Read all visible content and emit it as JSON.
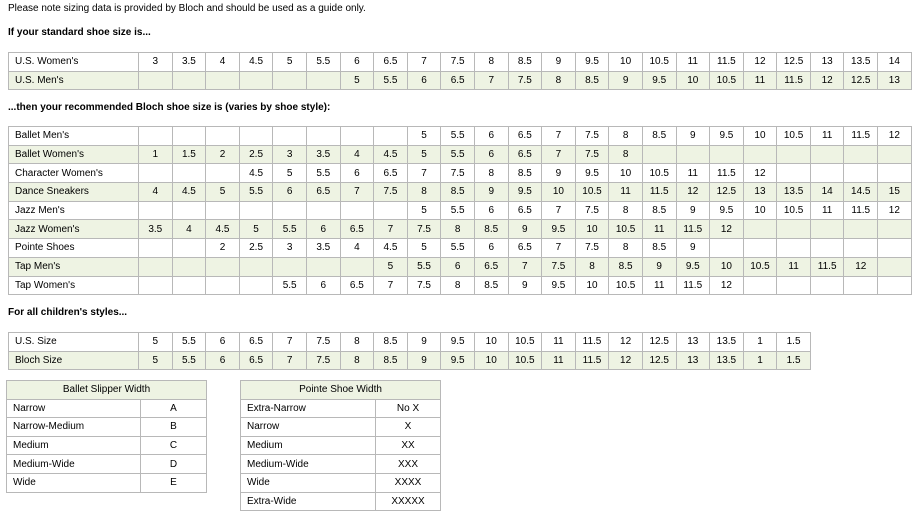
{
  "note": "Please note sizing data is provided by Bloch and should be used as a guide only.",
  "standard_heading": "If your standard shoe size is...",
  "standard_table": {
    "rows": [
      {
        "label": "U.S. Women's",
        "values": [
          3,
          3.5,
          4,
          4.5,
          5,
          5.5,
          6,
          6.5,
          7,
          7.5,
          8,
          8.5,
          9,
          9.5,
          10,
          10.5,
          11,
          11.5,
          12,
          12.5,
          13,
          13.5,
          14
        ]
      },
      {
        "label": "U.S. Men's",
        "values": [
          null,
          null,
          null,
          null,
          null,
          null,
          5,
          5.5,
          6,
          6.5,
          7,
          7.5,
          8,
          8.5,
          9,
          9.5,
          10,
          10.5,
          11,
          11.5,
          12,
          12.5,
          13
        ]
      }
    ]
  },
  "recommended_heading": "...then your recommended Bloch shoe size is (varies by shoe style):",
  "recommended_table": {
    "rows": [
      {
        "label": "Ballet Men's",
        "values": [
          null,
          null,
          null,
          null,
          null,
          null,
          null,
          null,
          5,
          5.5,
          6,
          6.5,
          7,
          7.5,
          8,
          8.5,
          9,
          9.5,
          10,
          10.5,
          11,
          11.5,
          12
        ]
      },
      {
        "label": "Ballet Women's",
        "values": [
          1,
          1.5,
          2,
          2.5,
          3,
          3.5,
          4,
          4.5,
          5,
          5.5,
          6,
          6.5,
          7,
          7.5,
          8,
          null,
          null,
          null,
          null,
          null,
          null,
          null,
          null
        ]
      },
      {
        "label": "Character Women's",
        "values": [
          null,
          null,
          null,
          4.5,
          5,
          5.5,
          6,
          6.5,
          7,
          7.5,
          8,
          8.5,
          9,
          9.5,
          10,
          10.5,
          11,
          11.5,
          12,
          null,
          null,
          null,
          null
        ]
      },
      {
        "label": "Dance Sneakers",
        "values": [
          4,
          4.5,
          5,
          5.5,
          6,
          6.5,
          7,
          7.5,
          8,
          8.5,
          9,
          9.5,
          10,
          10.5,
          11,
          11.5,
          12,
          12.5,
          13,
          13.5,
          14,
          14.5,
          15
        ]
      },
      {
        "label": "Jazz Men's",
        "values": [
          null,
          null,
          null,
          null,
          null,
          null,
          null,
          null,
          5,
          5.5,
          6,
          6.5,
          7,
          7.5,
          8,
          8.5,
          9,
          9.5,
          10,
          10.5,
          11,
          11.5,
          12
        ]
      },
      {
        "label": "Jazz Women's",
        "values": [
          3.5,
          4,
          4.5,
          5,
          5.5,
          6,
          6.5,
          7,
          7.5,
          8,
          8.5,
          9,
          9.5,
          10,
          10.5,
          11,
          11.5,
          12,
          null,
          null,
          null,
          null,
          null
        ]
      },
      {
        "label": "Pointe Shoes",
        "values": [
          null,
          null,
          2,
          2.5,
          3,
          3.5,
          4,
          4.5,
          5,
          5.5,
          6,
          6.5,
          7,
          7.5,
          8,
          8.5,
          9,
          null,
          null,
          null,
          null,
          null,
          null
        ]
      },
      {
        "label": "Tap Men's",
        "values": [
          null,
          null,
          null,
          null,
          null,
          null,
          null,
          5,
          5.5,
          6,
          6.5,
          7,
          7.5,
          8,
          8.5,
          9,
          9.5,
          10,
          10.5,
          11,
          11.5,
          12,
          null
        ]
      },
      {
        "label": "Tap Women's",
        "values": [
          null,
          null,
          null,
          null,
          5.5,
          6,
          6.5,
          7,
          7.5,
          8,
          8.5,
          9,
          9.5,
          10,
          10.5,
          11,
          11.5,
          12,
          null,
          null,
          null,
          null,
          null
        ]
      }
    ]
  },
  "children_heading": "For all children's styles...",
  "children_table": {
    "rows": [
      {
        "label": "U.S. Size",
        "values": [
          5,
          5.5,
          6,
          6.5,
          7,
          7.5,
          8,
          8.5,
          9,
          9.5,
          10,
          10.5,
          11,
          11.5,
          12,
          12.5,
          13,
          13.5,
          1,
          1.5
        ]
      },
      {
        "label": "Bloch Size",
        "values": [
          5,
          5.5,
          6,
          6.5,
          7,
          7.5,
          8,
          8.5,
          9,
          9.5,
          10,
          10.5,
          11,
          11.5,
          12,
          12.5,
          13,
          13.5,
          1,
          1.5
        ]
      }
    ]
  },
  "ballet_width_table": {
    "title": "Ballet Slipper Width",
    "rows": [
      [
        "Narrow",
        "A"
      ],
      [
        "Narrow-Medium",
        "B"
      ],
      [
        "Medium",
        "C"
      ],
      [
        "Medium-Wide",
        "D"
      ],
      [
        "Wide",
        "E"
      ]
    ]
  },
  "pointe_width_table": {
    "title": "Pointe Shoe Width",
    "rows": [
      [
        "Extra-Narrow",
        "No X"
      ],
      [
        "Narrow",
        "X"
      ],
      [
        "Medium",
        "XX"
      ],
      [
        "Medium-Wide",
        "XXX"
      ],
      [
        "Wide",
        "XXXX"
      ],
      [
        "Extra-Wide",
        "XXXXX"
      ]
    ]
  }
}
